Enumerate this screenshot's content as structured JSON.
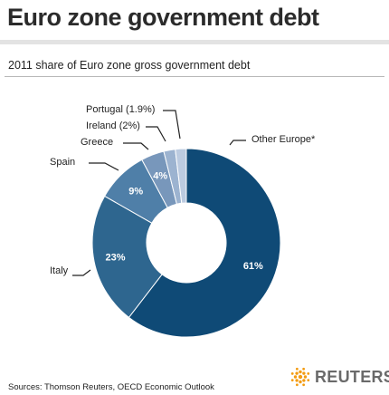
{
  "header": {
    "title": "Euro zone government debt",
    "subtitle": "2011 share of Euro zone gross government debt"
  },
  "footer": {
    "source": "Sources: Thomson Reuters, OECD Economic Outlook",
    "logo_text": "REUTERS",
    "logo_icon": "reuters-dot-logo"
  },
  "colors": {
    "other_europe": "#0f4a76",
    "italy": "#2e668f",
    "spain": "#4f7fa8",
    "greece": "#7897bb",
    "ireland": "#9cb3d0",
    "portugal": "#bccbe0",
    "logo_orange": "#f39c12"
  },
  "chart_data": {
    "type": "pie",
    "variant": "donut",
    "title": "2011 share of Euro zone gross government debt",
    "slices": [
      {
        "name": "Other Europe*",
        "value": 61,
        "data_label": "61%"
      },
      {
        "name": "Italy",
        "value": 23,
        "data_label": "23%"
      },
      {
        "name": "Spain",
        "value": 9,
        "data_label": "9%"
      },
      {
        "name": "Greece",
        "value": 4,
        "data_label": "4%"
      },
      {
        "name": "Ireland (2%)",
        "value": 2,
        "data_label": ""
      },
      {
        "name": "Portugal (1.9%)",
        "value": 1.9,
        "data_label": ""
      }
    ],
    "legend": "none",
    "start_angle": "top",
    "direction": "clockwise"
  }
}
